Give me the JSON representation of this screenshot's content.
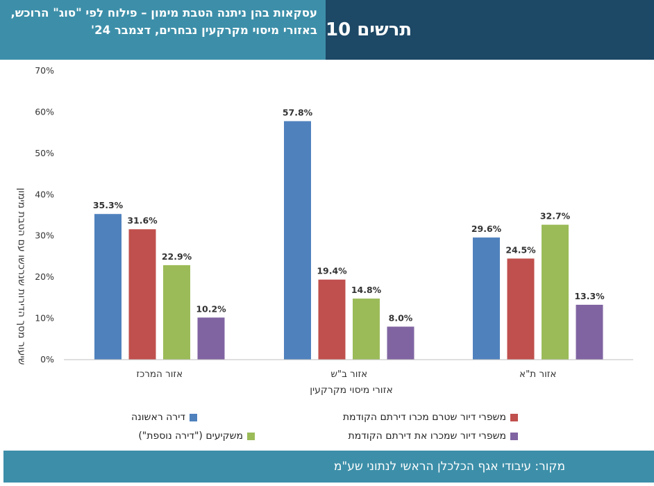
{
  "header": {
    "title": "עסקאות בהן ניתנה הטבת מימון – פילוח לפי \"סוג\" הרוכש, באזורי מיסוי מקרקעין נבחרים, דצמבר 24'",
    "figure_label": "תרשים 10"
  },
  "footer": {
    "source": "מקור: עיבודי אגף הכלכלן הראשי לנתוני שע\"מ"
  },
  "colors": {
    "header_left_bg": "#3d8fa9",
    "header_right_bg": "#1d4866",
    "footer_bg": "#3d8fa9"
  },
  "chart_data": {
    "type": "bar",
    "categories": [
      "אזור המרכז",
      "אזור ב\"ש",
      "אזור ת\"א"
    ],
    "series": [
      {
        "name": "דירה ראשונה",
        "color": "#4f81bd",
        "values": [
          35.3,
          57.8,
          29.6
        ]
      },
      {
        "name": "משפרי דיור שטרם מכרו דירתם הקודמת",
        "color": "#c0504d",
        "values": [
          31.6,
          19.4,
          24.5
        ]
      },
      {
        "name": "משקיעים (\"דירה נוספת\")",
        "color": "#9bbb59",
        "values": [
          22.9,
          14.8,
          32.7
        ]
      },
      {
        "name": "משפרי דיור שמכרו את דירתם הקודמת",
        "color": "#8064a2",
        "values": [
          10.2,
          8.0,
          13.3
        ]
      }
    ],
    "data_labels": [
      [
        "35.3%",
        "57.8%",
        "29.6%"
      ],
      [
        "31.6%",
        "19.4%",
        "24.5%"
      ],
      [
        "22.9%",
        "14.8%",
        "32.7%"
      ],
      [
        "10.2%",
        "8.0%",
        "13.3%"
      ]
    ],
    "y_ticks": [
      "0%",
      "10%",
      "20%",
      "30%",
      "40%",
      "50%",
      "60%",
      "70%"
    ],
    "ylim": [
      0,
      70
    ],
    "xlabel": "אזורי מיסוי מקרקעין",
    "ylabel": "שיעור מסך הדירות שנרכשו עם הטבת מימון",
    "grid": false,
    "legend_position": "bottom"
  }
}
